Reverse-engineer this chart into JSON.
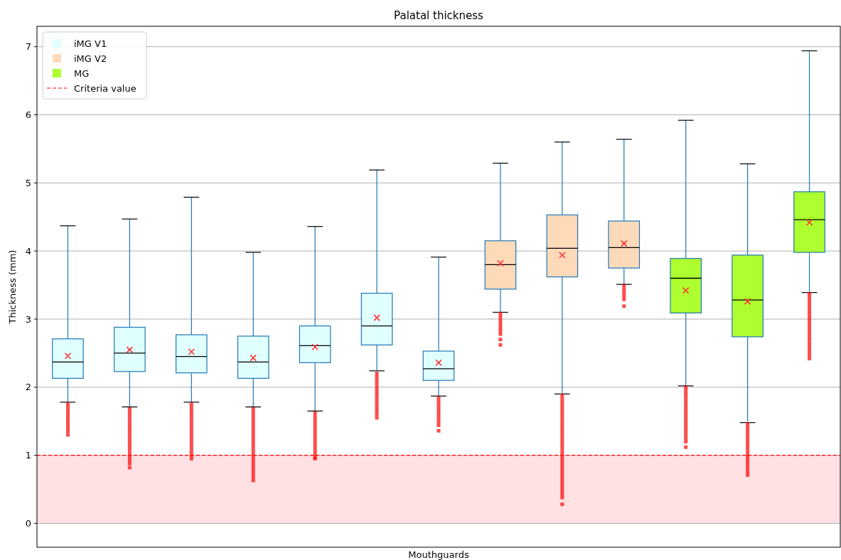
{
  "chart_data": {
    "type": "box",
    "title": "Palatal thickness",
    "xlabel": "Mouthguards",
    "ylabel": "Thickness (mm)",
    "categories": [
      null,
      null,
      null,
      null,
      null,
      null,
      null,
      null,
      null,
      null,
      null,
      null,
      null
    ],
    "ylim": [
      -0.35,
      7.3
    ],
    "yticks": [
      0,
      1,
      2,
      3,
      4,
      5,
      6,
      7
    ],
    "grid": "y",
    "legend": "top left",
    "marker": "cross",
    "series": [
      {
        "name": "iMG V1",
        "color": "#e0ffff",
        "boxes": [
          {
            "low": 1.78,
            "q1": 2.13,
            "median": 2.37,
            "q3": 2.71,
            "high": 4.37,
            "mean": 2.46,
            "outliers": [
              1.75,
              1.7,
              1.65,
              1.6,
              1.55,
              1.5,
              1.45,
              1.4,
              1.35,
              1.3
            ]
          },
          {
            "low": 1.71,
            "q1": 2.23,
            "median": 2.5,
            "q3": 2.88,
            "high": 4.47,
            "mean": 2.55,
            "outliers": [
              1.68,
              1.63,
              1.58,
              1.53,
              1.48,
              1.43,
              1.38,
              1.33,
              1.28,
              1.23,
              1.18,
              1.13,
              1.08,
              1.03,
              0.98,
              0.93,
              0.88,
              0.82
            ]
          },
          {
            "low": 1.78,
            "q1": 2.21,
            "median": 2.45,
            "q3": 2.77,
            "high": 4.79,
            "mean": 2.52,
            "outliers": [
              1.75,
              1.7,
              1.65,
              1.6,
              1.55,
              1.5,
              1.45,
              1.4,
              1.35,
              1.3,
              1.25,
              1.2,
              1.15,
              1.1,
              1.05,
              1.0,
              0.95
            ]
          },
          {
            "low": 1.71,
            "q1": 2.13,
            "median": 2.37,
            "q3": 2.75,
            "high": 3.98,
            "mean": 2.43,
            "outliers": [
              1.68,
              1.63,
              1.58,
              1.53,
              1.48,
              1.43,
              1.38,
              1.33,
              1.28,
              1.23,
              1.18,
              1.13,
              1.08,
              1.03,
              0.98,
              0.93,
              0.88,
              0.83,
              0.78,
              0.73,
              0.68,
              0.63
            ]
          },
          {
            "low": 1.65,
            "q1": 2.36,
            "median": 2.61,
            "q3": 2.9,
            "high": 4.36,
            "mean": 2.59,
            "outliers": [
              1.62,
              1.57,
              1.52,
              1.47,
              1.42,
              1.37,
              1.32,
              1.27,
              1.22,
              1.17,
              1.12,
              1.07,
              1.02,
              0.97,
              0.95
            ]
          },
          {
            "low": 2.24,
            "q1": 2.62,
            "median": 2.9,
            "q3": 3.38,
            "high": 5.19,
            "mean": 3.02,
            "outliers": [
              2.2,
              2.15,
              2.1,
              2.05,
              2.0,
              1.95,
              1.9,
              1.85,
              1.8,
              1.75,
              1.7,
              1.65,
              1.6,
              1.55
            ]
          },
          {
            "low": 1.87,
            "q1": 2.1,
            "median": 2.27,
            "q3": 2.53,
            "high": 3.91,
            "mean": 2.36,
            "outliers": [
              1.84,
              1.79,
              1.74,
              1.69,
              1.64,
              1.59,
              1.54,
              1.49,
              1.44,
              1.36
            ]
          },
          null,
          null,
          null,
          null,
          null,
          null
        ]
      },
      {
        "name": "iMG V2",
        "color": "#ffdab9",
        "boxes": [
          null,
          null,
          null,
          null,
          null,
          null,
          null,
          {
            "low": 3.1,
            "q1": 3.44,
            "median": 3.8,
            "q3": 4.15,
            "high": 5.29,
            "mean": 3.82,
            "outliers": [
              3.08,
              3.03,
              2.98,
              2.93,
              2.88,
              2.83,
              2.78,
              2.7,
              2.62
            ]
          },
          {
            "low": 1.9,
            "q1": 3.62,
            "median": 4.04,
            "q3": 4.53,
            "high": 5.6,
            "mean": 3.94,
            "outliers": [
              1.88,
              1.83,
              1.78,
              1.73,
              1.68,
              1.63,
              1.58,
              1.53,
              1.48,
              1.43,
              1.38,
              1.33,
              1.28,
              1.23,
              1.18,
              1.13,
              1.08,
              1.03,
              0.98,
              0.93,
              0.88,
              0.83,
              0.78,
              0.73,
              0.68,
              0.63,
              0.58,
              0.53,
              0.48,
              0.43,
              0.38,
              0.28
            ]
          },
          {
            "low": 3.51,
            "q1": 3.75,
            "median": 4.05,
            "q3": 4.44,
            "high": 5.64,
            "mean": 4.11,
            "outliers": [
              3.49,
              3.44,
              3.39,
              3.34,
              3.29,
              3.19
            ]
          },
          null,
          null,
          null
        ]
      },
      {
        "name": "MG",
        "color": "#adff2f",
        "boxes": [
          null,
          null,
          null,
          null,
          null,
          null,
          null,
          null,
          null,
          null,
          {
            "low": 2.02,
            "q1": 3.09,
            "median": 3.6,
            "q3": 3.89,
            "high": 5.92,
            "mean": 3.42,
            "outliers": [
              2.0,
              1.95,
              1.9,
              1.85,
              1.8,
              1.75,
              1.7,
              1.65,
              1.6,
              1.55,
              1.5,
              1.45,
              1.4,
              1.35,
              1.3,
              1.25,
              1.2,
              1.12
            ]
          },
          {
            "low": 1.48,
            "q1": 2.74,
            "median": 3.28,
            "q3": 3.94,
            "high": 5.28,
            "mean": 3.26,
            "outliers": [
              1.46,
              1.41,
              1.36,
              1.31,
              1.26,
              1.21,
              1.16,
              1.11,
              1.06,
              1.01,
              0.96,
              0.91,
              0.86,
              0.81,
              0.76,
              0.71
            ]
          },
          {
            "low": 3.39,
            "q1": 3.98,
            "median": 4.46,
            "q3": 4.87,
            "high": 6.94,
            "mean": 4.42,
            "outliers": [
              3.37,
              3.32,
              3.27,
              3.22,
              3.17,
              3.12,
              3.07,
              3.02,
              2.97,
              2.92,
              2.87,
              2.82,
              2.77,
              2.72,
              2.67,
              2.62,
              2.57,
              2.52,
              2.47,
              2.42
            ]
          }
        ]
      }
    ],
    "ref_lines": [
      {
        "axis": "y",
        "value": 1,
        "label": "Criteria value",
        "color": "#ff0000",
        "line_style": "dashed"
      }
    ],
    "bands": [
      {
        "axis": "y",
        "from": 0,
        "to": 1,
        "color": "#ffe0e3"
      }
    ]
  }
}
